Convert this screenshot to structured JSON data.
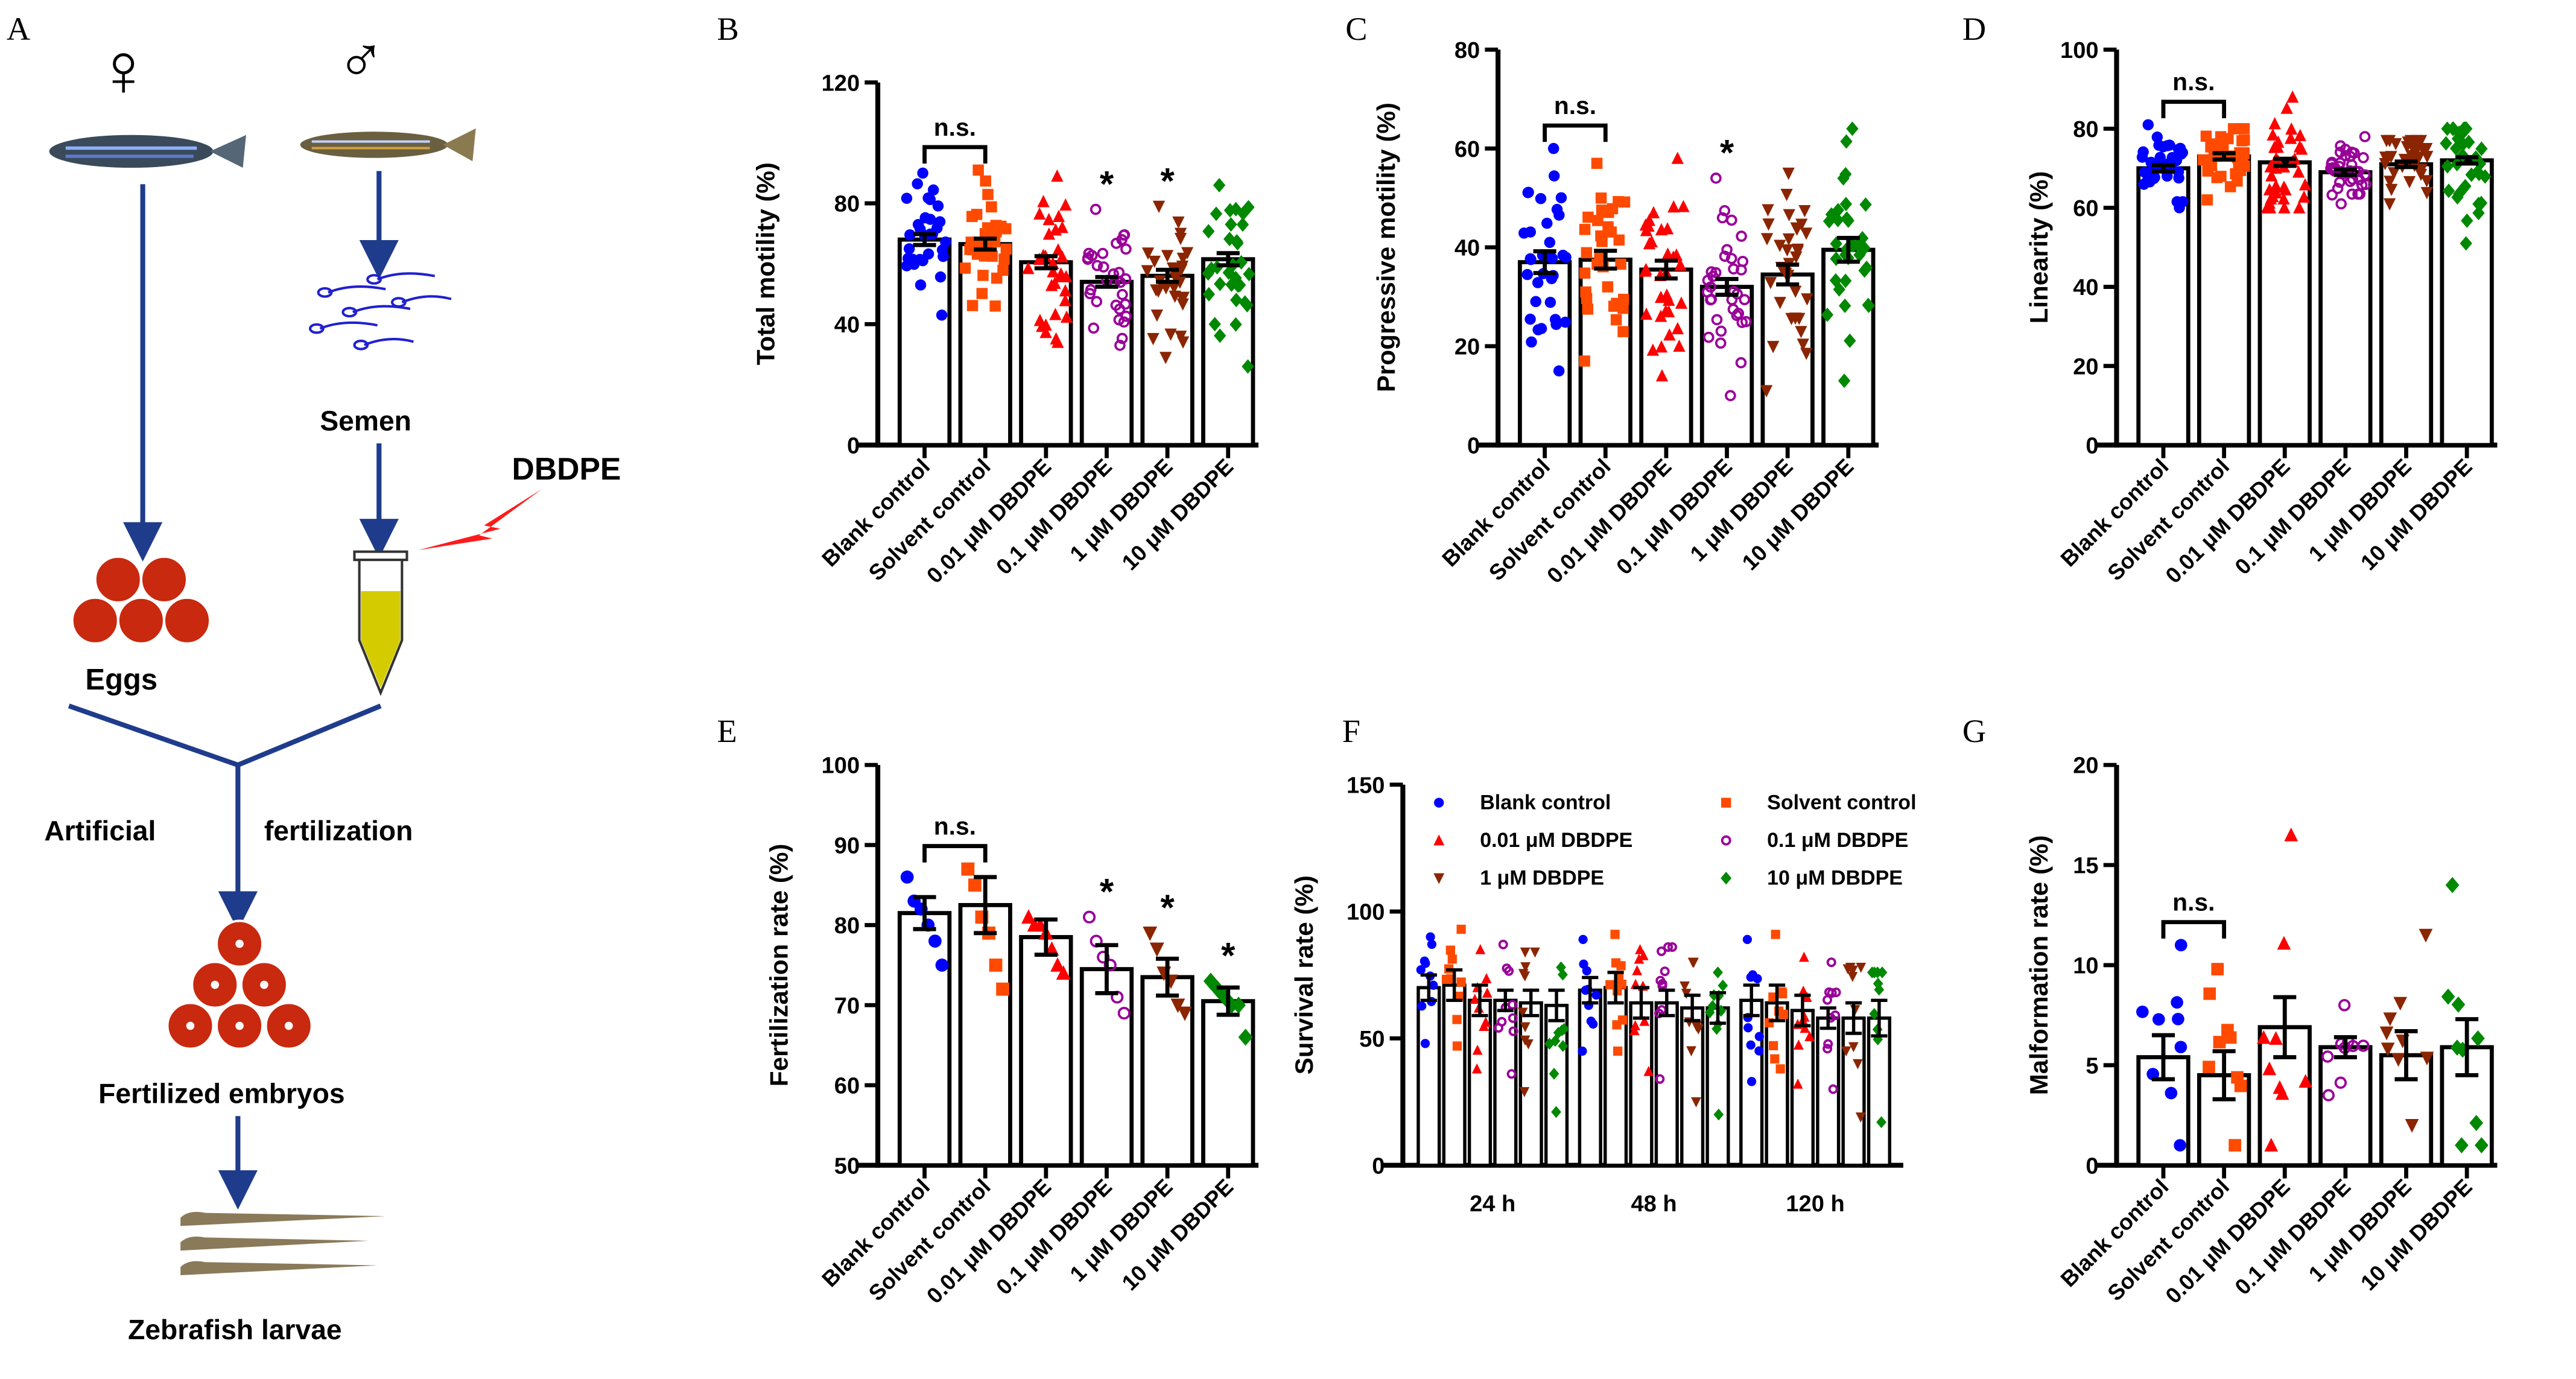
{
  "panel_a": {
    "letter": "A",
    "female_symbol": "♀",
    "male_symbol": "♂",
    "semen": "Semen",
    "dbdpe": "DBDPE",
    "eggs": "Eggs",
    "artificial": "Artificial",
    "fertilization": "fertilization",
    "fertilized_embryos": "Fertilized embryos",
    "larvae": "Zebrafish larvae",
    "colors": {
      "arrow": "#1f3c8c",
      "egg": "#c8290f",
      "bolt": "#ff1a1a",
      "liquid": "#d4cc00"
    }
  },
  "group_styles": [
    {
      "marker": "circle",
      "color": "#0000ff"
    },
    {
      "marker": "square",
      "color": "#ff4a00"
    },
    {
      "marker": "triangle-up",
      "color": "#ff0000"
    },
    {
      "marker": "open-circle",
      "color": "#990099"
    },
    {
      "marker": "triangle-down",
      "color": "#8b2500"
    },
    {
      "marker": "diamond",
      "color": "#008800"
    }
  ],
  "chart_data": [
    {
      "id": "B",
      "letter": "B",
      "type": "bar",
      "ylabel": "Total motility (%)",
      "ylim": [
        0,
        120
      ],
      "yticks": [
        "0",
        "40",
        "80",
        "120"
      ],
      "categories": [
        "Blank control",
        "Solvent control",
        "0.01 μM DBDPE",
        "0.1 μM DBDPE",
        "1 μM DBDPE",
        "10 μM DBDPE"
      ],
      "values": [
        68,
        66.5,
        60.5,
        54,
        56,
        61.5
      ],
      "sem": [
        1.8,
        1.8,
        2.0,
        1.6,
        2.0,
        2.0
      ],
      "ranges": [
        [
          43,
          90
        ],
        [
          46,
          91
        ],
        [
          34,
          89
        ],
        [
          33,
          78
        ],
        [
          29,
          79
        ],
        [
          26,
          86
        ]
      ],
      "n": 32,
      "ns_label": "n.s.",
      "star_label": "*",
      "stars": [
        3,
        4
      ]
    },
    {
      "id": "C",
      "letter": "C",
      "type": "bar",
      "ylabel": "Progressive motility (%)",
      "ylim": [
        0,
        80
      ],
      "yticks": [
        "0",
        "20",
        "40",
        "60",
        "80"
      ],
      "categories": [
        "Blank control",
        "Solvent control",
        "0.01 μM DBDPE",
        "0.1 μM DBDPE",
        "1 μM DBDPE",
        "10 μM DBDPE"
      ],
      "values": [
        37,
        37.5,
        35.5,
        32,
        34.5,
        39.5
      ],
      "sem": [
        2.2,
        1.8,
        1.8,
        1.6,
        2.0,
        2.4
      ],
      "ranges": [
        [
          15,
          60
        ],
        [
          17,
          57
        ],
        [
          14,
          58
        ],
        [
          10,
          54
        ],
        [
          11,
          55
        ],
        [
          13,
          64
        ]
      ],
      "n": 34,
      "ns_label": "n.s.",
      "star_label": "*",
      "stars": [
        3
      ]
    },
    {
      "id": "D",
      "letter": "D",
      "type": "bar",
      "ylabel": "Linearity (%)",
      "ylim": [
        0,
        100
      ],
      "yticks": [
        "0",
        "20",
        "40",
        "60",
        "80",
        "100"
      ],
      "categories": [
        "Blank control",
        "Solvent control",
        "0.01 μM DBDPE",
        "0.1 μM DBDPE",
        "1 μM DBDPE",
        "10 μM DBDPE"
      ],
      "values": [
        70,
        73,
        71.5,
        69,
        71,
        72
      ],
      "sem": [
        0.8,
        0.8,
        0.9,
        0.7,
        0.7,
        0.8
      ],
      "ranges": [
        [
          60,
          81
        ],
        [
          62,
          80
        ],
        [
          60,
          88
        ],
        [
          61,
          78
        ],
        [
          61,
          77
        ],
        [
          51,
          80
        ]
      ],
      "n": 36,
      "ns_label": "n.s.",
      "star_label": "*",
      "stars": []
    },
    {
      "id": "E",
      "letter": "E",
      "type": "bar",
      "ylabel": "Fertilization rate (%)",
      "ylim": [
        50,
        100
      ],
      "yticks": [
        "50",
        "60",
        "70",
        "80",
        "90",
        "100"
      ],
      "categories": [
        "Blank control",
        "Solvent control",
        "0.01 μM DBDPE",
        "0.1 μM DBDPE",
        "1 μM DBDPE",
        "10 μM DBDPE"
      ],
      "values": [
        81.5,
        82.5,
        78.5,
        74.5,
        73.5,
        70.5
      ],
      "sem": [
        2.0,
        3.5,
        2.2,
        3.0,
        2.3,
        1.7
      ],
      "points": [
        [
          86,
          83,
          82,
          80,
          78,
          75
        ],
        [
          87,
          85,
          81,
          79,
          75,
          72
        ],
        [
          81,
          80,
          80,
          79,
          77,
          75,
          74
        ],
        [
          81,
          78,
          76,
          75,
          71,
          69
        ],
        [
          79,
          77,
          74,
          73,
          70,
          69
        ],
        [
          73,
          72,
          71,
          70,
          70,
          66
        ]
      ],
      "ns_label": "n.s.",
      "star_label": "*",
      "stars": [
        3,
        4,
        5
      ]
    },
    {
      "id": "F",
      "letter": "F",
      "type": "grouped-bar",
      "ylabel": "Survival rate (%)",
      "ylim": [
        0,
        150
      ],
      "yticks": [
        "0",
        "50",
        "100",
        "150"
      ],
      "categories": [
        "24 h",
        "48 h",
        "120 h"
      ],
      "legend": [
        "Blank control",
        "Solvent control",
        "0.01 μM DBDPE",
        "0.1 μM DBDPE",
        "1 μM DBDPE",
        "10 μM DBDPE"
      ],
      "legend_position": "top",
      "series": [
        {
          "name": "Blank control",
          "values": [
            70,
            69,
            65
          ],
          "sem": [
            5,
            5,
            6
          ],
          "ranges": [
            [
              48,
              90
            ],
            [
              45,
              89
            ],
            [
              33,
              89
            ]
          ]
        },
        {
          "name": "Solvent control",
          "values": [
            71,
            70,
            64
          ],
          "sem": [
            6,
            6,
            7
          ],
          "ranges": [
            [
              47,
              93
            ],
            [
              45,
              91
            ],
            [
              38,
              91
            ]
          ]
        },
        {
          "name": "0.01 μM DBDPE",
          "values": [
            65,
            64,
            61
          ],
          "sem": [
            6,
            6,
            6
          ],
          "ranges": [
            [
              38,
              85
            ],
            [
              37,
              85
            ],
            [
              32,
              82
            ]
          ]
        },
        {
          "name": "0.1 μM DBDPE",
          "values": [
            65,
            64,
            58
          ],
          "sem": [
            4,
            5,
            4
          ],
          "ranges": [
            [
              36,
              87
            ],
            [
              34,
              86
            ],
            [
              30,
              80
            ]
          ]
        },
        {
          "name": "1 μM DBDPE",
          "values": [
            64,
            62,
            58
          ],
          "sem": [
            5,
            5,
            6
          ],
          "ranges": [
            [
              29,
              84
            ],
            [
              25,
              80
            ],
            [
              19,
              78
            ]
          ]
        },
        {
          "name": "10 μM DBDPE",
          "values": [
            63,
            62,
            58
          ],
          "sem": [
            6,
            6,
            7
          ],
          "ranges": [
            [
              21,
              78
            ],
            [
              20,
              76
            ],
            [
              17,
              76
            ]
          ]
        }
      ],
      "n": 10
    },
    {
      "id": "G",
      "letter": "G",
      "type": "bar",
      "ylabel": "Malformation rate (%)",
      "ylim": [
        0,
        20
      ],
      "yticks": [
        "0",
        "5",
        "10",
        "15",
        "20"
      ],
      "categories": [
        "Blank control",
        "Solvent control",
        "0.01 μM DBDPE",
        "0.1 μM DBDPE",
        "1 μM DBDPE",
        "10 μM DBDPE"
      ],
      "values": [
        5.4,
        4.5,
        6.9,
        5.9,
        5.5,
        5.9
      ],
      "sem": [
        1.1,
        1.2,
        1.5,
        0.5,
        1.2,
        1.4
      ],
      "ranges": [
        [
          1,
          11
        ],
        [
          1,
          9.8
        ],
        [
          1,
          16.5
        ],
        [
          3.5,
          8
        ],
        [
          2,
          11.5
        ],
        [
          1,
          14
        ]
      ],
      "n": 9,
      "ns_label": "n.s.",
      "star_label": "*",
      "stars": []
    }
  ]
}
